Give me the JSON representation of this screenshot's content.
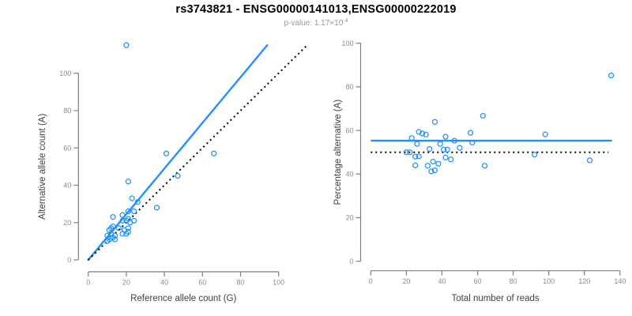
{
  "header": {
    "title": "rs3743821 - ENSG00000141013,ENSG00000222019",
    "subtitle_base": "p-value: 1.17×10",
    "subtitle_exponent": "-4"
  },
  "colors": {
    "accent_blue": "#1E90FF",
    "identity_black": "#000000",
    "axis_line": "#7f7f7f",
    "tick_label": "#8c8c8c",
    "axis_title": "#404040",
    "subtitle_gray": "#969696"
  },
  "chart_data": [
    {
      "type": "scatter",
      "name": "allele-counts-scatter",
      "xlabel": "Reference allele count (G)",
      "ylabel": "Alternative allele count (A)",
      "xlim": [
        0,
        100
      ],
      "ylim": [
        0,
        100
      ],
      "xticks": [
        0,
        20,
        40,
        60,
        80,
        100
      ],
      "yticks": [
        0,
        20,
        40,
        60,
        80,
        100
      ],
      "grid": false,
      "legend": "none",
      "points": [
        [
          20,
          115
        ],
        [
          41,
          57
        ],
        [
          66,
          57
        ],
        [
          47,
          45
        ],
        [
          21,
          42
        ],
        [
          36,
          28
        ],
        [
          23,
          33
        ],
        [
          26,
          31
        ],
        [
          13,
          23
        ],
        [
          18,
          24
        ],
        [
          21,
          26
        ],
        [
          24,
          26
        ],
        [
          21,
          22
        ],
        [
          18,
          21
        ],
        [
          20,
          21
        ],
        [
          22,
          20
        ],
        [
          24,
          21
        ],
        [
          12,
          17
        ],
        [
          13,
          18
        ],
        [
          10,
          13
        ],
        [
          12,
          14
        ],
        [
          16,
          17
        ],
        [
          10,
          10
        ],
        [
          11,
          11
        ],
        [
          13,
          12
        ],
        [
          14,
          13
        ],
        [
          14,
          11
        ],
        [
          18,
          14
        ],
        [
          20,
          14
        ],
        [
          21,
          15
        ],
        [
          19,
          16
        ],
        [
          21,
          17
        ],
        [
          11,
          16
        ]
      ],
      "lines": [
        {
          "name": "regression-fit",
          "style": "solid",
          "color": "#1E90FF",
          "x1": 0,
          "y1": 0,
          "x2": 94,
          "y2": 115
        },
        {
          "name": "identity",
          "style": "dotted",
          "color": "#000000",
          "x1": 0,
          "y1": 0,
          "x2": 115,
          "y2": 115
        }
      ]
    },
    {
      "type": "scatter",
      "name": "percentage-vs-reads-scatter",
      "xlabel": "Total number of reads",
      "ylabel": "Percentage alternative (A)",
      "xlim": [
        0,
        140
      ],
      "ylim": [
        0,
        100
      ],
      "xticks": [
        0,
        20,
        40,
        60,
        80,
        100,
        120,
        140
      ],
      "yticks": [
        0,
        20,
        40,
        60,
        80,
        100
      ],
      "grid": false,
      "legend": "none",
      "points": [
        [
          135,
          85.2
        ],
        [
          98,
          58.2
        ],
        [
          123,
          46.3
        ],
        [
          92,
          48.9
        ],
        [
          63,
          66.7
        ],
        [
          64,
          43.8
        ],
        [
          56,
          58.9
        ],
        [
          57,
          54.4
        ],
        [
          36,
          63.9
        ],
        [
          42,
          57.1
        ],
        [
          47,
          55.3
        ],
        [
          50,
          52.0
        ],
        [
          43,
          51.2
        ],
        [
          39,
          53.8
        ],
        [
          41,
          51.2
        ],
        [
          42,
          47.6
        ],
        [
          45,
          46.7
        ],
        [
          29,
          58.6
        ],
        [
          31,
          58.1
        ],
        [
          23,
          56.5
        ],
        [
          26,
          53.8
        ],
        [
          33,
          51.5
        ],
        [
          20,
          50.0
        ],
        [
          22,
          50.0
        ],
        [
          25,
          48.0
        ],
        [
          27,
          48.1
        ],
        [
          25,
          44.0
        ],
        [
          32,
          43.8
        ],
        [
          34,
          41.2
        ],
        [
          36,
          41.7
        ],
        [
          35,
          45.7
        ],
        [
          38,
          44.7
        ],
        [
          27,
          59.3
        ]
      ],
      "lines": [
        {
          "name": "mean-percentage",
          "style": "solid",
          "color": "#1E90FF",
          "x1": 0.5,
          "y1": 55.3,
          "x2": 135,
          "y2": 55.3
        },
        {
          "name": "expected-50pct",
          "style": "dotted",
          "color": "#000000",
          "x1": 0,
          "y1": 50,
          "x2": 133.5,
          "y2": 50
        }
      ]
    }
  ]
}
